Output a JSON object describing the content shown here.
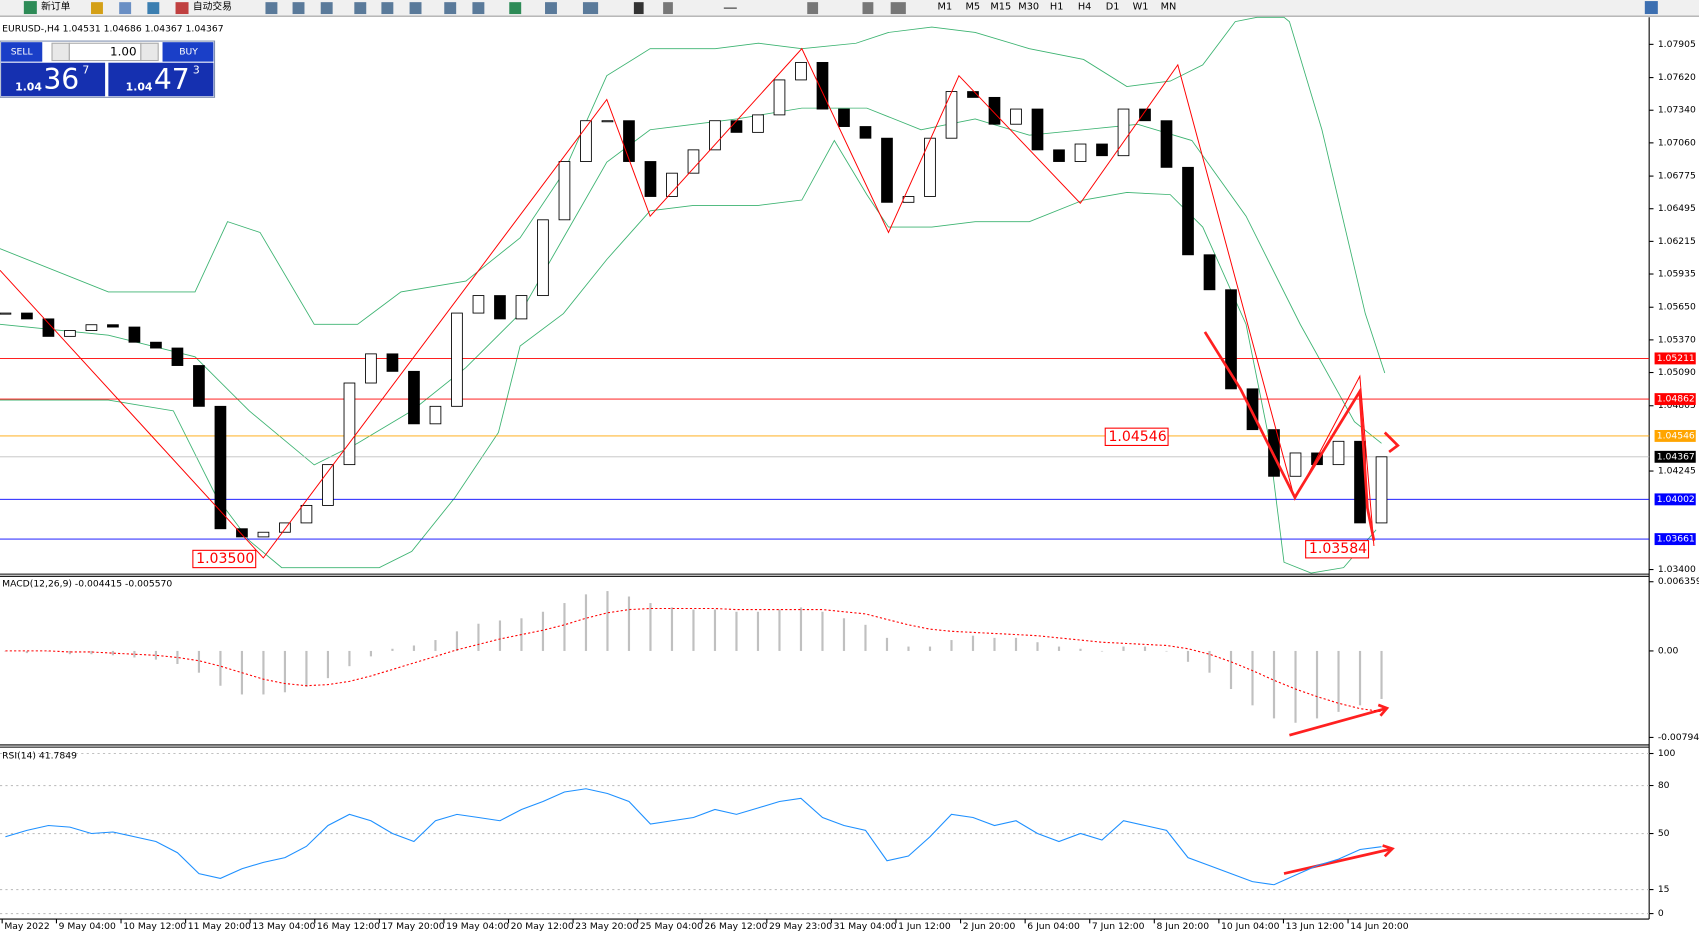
{
  "toolbar": {
    "new_order": "新订单",
    "auto_trading": "自动交易",
    "timeframes": [
      "M1",
      "M5",
      "M15",
      "M30",
      "H1",
      "H4",
      "D1",
      "W1",
      "MN"
    ]
  },
  "trade_panel": {
    "sell": "SELL",
    "lots": "1.00",
    "buy": "BUY",
    "bid": {
      "prefix": "1.04",
      "big": "36",
      "sup": "7"
    },
    "ask": {
      "prefix": "1.04",
      "big": "47",
      "sup": "3"
    }
  },
  "chart_data": [
    {
      "type": "candlestick",
      "title": "EURUSD-,H4  1.04531 1.04686 1.04367 1.04367",
      "close": [
        1.056,
        1.0555,
        1.054,
        1.0545,
        1.055,
        1.0548,
        1.0535,
        1.053,
        1.0515,
        1.048,
        1.0375,
        1.0368,
        1.0372,
        1.038,
        1.0395,
        1.043,
        1.05,
        1.0525,
        1.051,
        1.0465,
        1.048,
        1.056,
        1.0575,
        1.0555,
        1.0575,
        1.064,
        1.069,
        1.0725,
        1.0725,
        1.069,
        1.066,
        1.068,
        1.07,
        1.0725,
        1.0715,
        1.073,
        1.076,
        1.0775,
        1.0735,
        1.072,
        1.071,
        1.0655,
        1.066,
        1.071,
        1.075,
        1.0745,
        1.0722,
        1.0735,
        1.07,
        1.069,
        1.0705,
        1.0695,
        1.0735,
        1.0725,
        1.0685,
        1.061,
        1.058,
        1.0495,
        1.046,
        1.042,
        1.044,
        1.043,
        1.045,
        1.038,
        1.04367
      ],
      "up_color": "#ffffff",
      "down_color": "#000000",
      "ylim": [
        1.0337,
        1.081
      ],
      "yticks": [
        1.07905,
        {
          "value": 1.0762,
          "label": "1.07620"
        },
        {
          "value": 1.0734,
          "label": "1.07340"
        },
        {
          "value": 1.0706,
          "label": "1.07060"
        },
        1.06775,
        1.06495,
        1.06215,
        1.05935,
        {
          "value": 1.0565,
          "label": "1.05650"
        },
        {
          "value": 1.0537,
          "label": "1.05370"
        },
        {
          "value": 1.0509,
          "label": "1.05090"
        },
        1.04805,
        1.04245,
        {
          "value": 1.034,
          "label": "1.03400"
        }
      ],
      "levels": [
        {
          "value": 1.05211,
          "color": "#ff0000",
          "box": "#ff0000"
        },
        {
          "value": 1.04862,
          "color": "#ff0000",
          "box": "#ff0000"
        },
        {
          "value": 1.04546,
          "color": "#ffa500",
          "box": "#ffa500"
        },
        {
          "value": 1.04367,
          "color": "#c0c0c0",
          "box": "#000000"
        },
        {
          "value": 1.04002,
          "color": "#0000ff",
          "box": "#0000ff"
        },
        {
          "value": 1.03661,
          "color": "#0000ff",
          "box": "#0000ff"
        }
      ],
      "annotations": [
        "1.04546",
        "1.03500",
        "1.03584"
      ]
    },
    {
      "type": "macd",
      "title": "MACD(12,26,9) -0.004415 -0.005570",
      "histogram": [
        0.0,
        -0.0002,
        0.0,
        -0.0003,
        -0.0003,
        -0.0004,
        -0.0006,
        -0.0008,
        -0.0012,
        -0.002,
        -0.0032,
        -0.004,
        -0.004,
        -0.0038,
        -0.0033,
        -0.0025,
        -0.0014,
        -0.0005,
        0.0002,
        0.0005,
        0.001,
        0.0018,
        0.0025,
        0.0028,
        0.003,
        0.0036,
        0.0044,
        0.0052,
        0.0055,
        0.005,
        0.0044,
        0.004,
        0.0038,
        0.0038,
        0.0036,
        0.0036,
        0.0038,
        0.004,
        0.0036,
        0.003,
        0.0024,
        0.0012,
        0.0004,
        0.0004,
        0.001,
        0.0014,
        0.0012,
        0.0012,
        0.0008,
        0.0004,
        0.0002,
        0.0,
        0.0004,
        0.0004,
        0.0,
        -0.001,
        -0.002,
        -0.0035,
        -0.005,
        -0.0062,
        -0.0066,
        -0.0062,
        -0.0056,
        -0.005,
        -0.004415
      ],
      "signal": [
        0.0,
        0.0,
        0.0,
        -0.0001,
        -0.0001,
        -0.0002,
        -0.0003,
        -0.0004,
        -0.0006,
        -0.0009,
        -0.0014,
        -0.002,
        -0.0026,
        -0.003,
        -0.0032,
        -0.0031,
        -0.0028,
        -0.0023,
        -0.0017,
        -0.0011,
        -0.0005,
        0.0001,
        0.0006,
        0.0011,
        0.0015,
        0.0019,
        0.0024,
        0.003,
        0.0035,
        0.0038,
        0.0039,
        0.0039,
        0.0039,
        0.0039,
        0.0038,
        0.0038,
        0.0038,
        0.0038,
        0.0038,
        0.0036,
        0.0034,
        0.0029,
        0.0024,
        0.002,
        0.0018,
        0.0017,
        0.0016,
        0.0015,
        0.0014,
        0.0012,
        0.001,
        0.0008,
        0.0007,
        0.0006,
        0.0005,
        0.0002,
        -0.0003,
        -0.001,
        -0.0018,
        -0.0027,
        -0.0035,
        -0.0042,
        -0.0048,
        -0.0053,
        -0.00557
      ],
      "histogram_color": "#c0c0c0",
      "signal_color": "#ff0000",
      "ylim": [
        -0.00864,
        0.00686
      ],
      "yticks": [
        0.006359,
        {
          "value": 0,
          "label": "0.00"
        },
        -0.007949
      ]
    },
    {
      "type": "rsi",
      "title": "RSI(14) 41.7849",
      "values": [
        48,
        52,
        55,
        54,
        50,
        51,
        48,
        45,
        38,
        25,
        22,
        28,
        32,
        35,
        42,
        55,
        62,
        58,
        50,
        45,
        58,
        62,
        60,
        58,
        65,
        70,
        76,
        78,
        75,
        70,
        56,
        58,
        60,
        65,
        62,
        66,
        70,
        72,
        60,
        55,
        52,
        33,
        36,
        48,
        62,
        60,
        55,
        58,
        50,
        45,
        50,
        46,
        58,
        55,
        52,
        35,
        30,
        25,
        20,
        18,
        24,
        30,
        34,
        40,
        41.7849
      ],
      "color": "#1e90ff",
      "ylim": [
        -3.4,
        104
      ],
      "yticks": [
        100,
        80,
        50,
        15,
        0
      ],
      "grid": true
    }
  ],
  "x_labels": [
    "May 2022",
    "9 May 04:00",
    "10 May 12:00",
    "11 May 20:00",
    "13 May 04:00",
    "16 May 12:00",
    "17 May 20:00",
    "19 May 04:00",
    "20 May 12:00",
    "23 May 20:00",
    "25 May 04:00",
    "26 May 12:00",
    "29 May 23:00",
    "31 May 04:00",
    "1 Jun 12:00",
    "2 Jun 20:00",
    "6 Jun 04:00",
    "7 Jun 12:00",
    "8 Jun 20:00",
    "10 Jun 04:00",
    "13 Jun 12:00",
    "14 Jun 20:00"
  ]
}
